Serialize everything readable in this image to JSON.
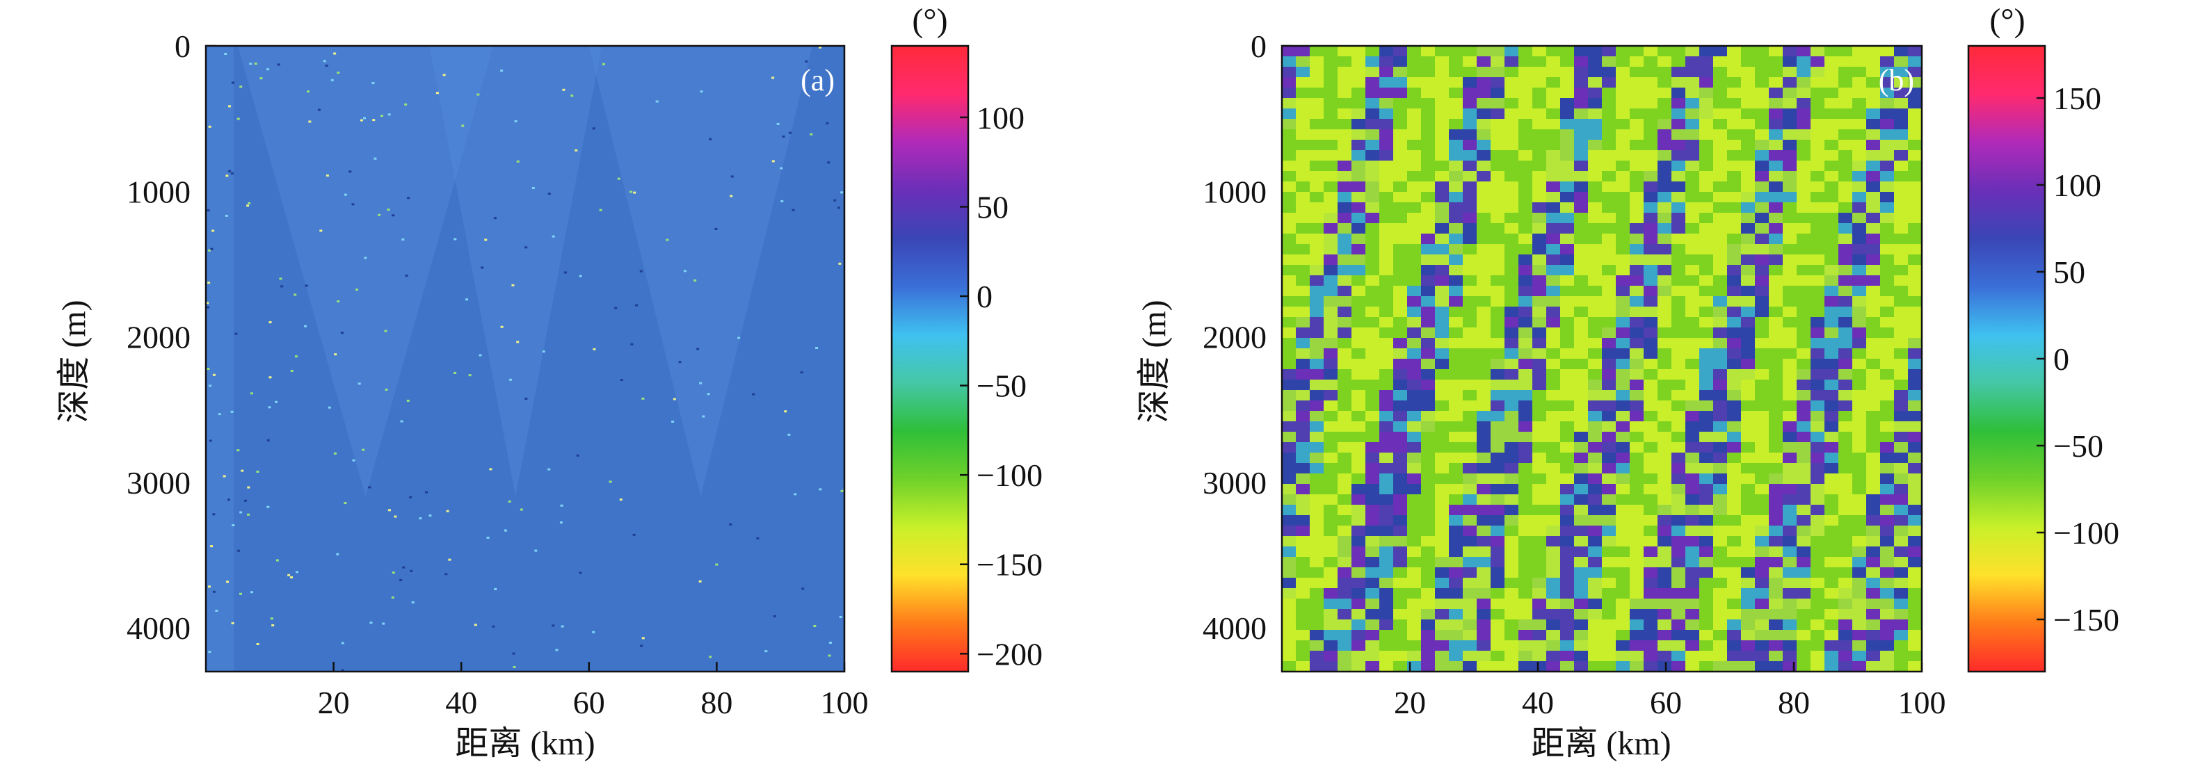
{
  "figure": {
    "background": "#ffffff"
  },
  "chart_data": [
    {
      "panel_label": "(a)",
      "type": "heatmap",
      "xlabel": "距离 (km)",
      "ylabel": "深度 (m)",
      "xlim": [
        0,
        100
      ],
      "ylim": [
        0,
        4300
      ],
      "y_inverted": true,
      "xticks": [
        20,
        40,
        60,
        80,
        100
      ],
      "yticks": [
        0,
        1000,
        2000,
        3000,
        4000
      ],
      "base_color": "#3f74c9",
      "colorbar": {
        "unit": "(°)",
        "range": [
          -210,
          140
        ],
        "ticks": [
          100,
          50,
          0,
          -50,
          -100,
          -150,
          -200
        ],
        "colormap": "rainbow-jet",
        "stops": [
          "#ff2a2a",
          "#ff7a1a",
          "#ffe12a",
          "#c8f02a",
          "#6fd12a",
          "#2fbf3a",
          "#45c7a7",
          "#3fc1f0",
          "#3a6fd8",
          "#3a46b5",
          "#6a2fb8",
          "#b02ab9",
          "#ff2a6e",
          "#ff2a3a"
        ]
      }
    },
    {
      "panel_label": "(b)",
      "type": "heatmap",
      "xlabel": "距离 (km)",
      "ylabel": "深度 (m)",
      "xlim": [
        0,
        100
      ],
      "ylim": [
        0,
        4300
      ],
      "y_inverted": true,
      "xticks": [
        20,
        40,
        60,
        80,
        100
      ],
      "yticks": [
        0,
        1000,
        2000,
        3000,
        4000
      ],
      "colorbar": {
        "unit": "(°)",
        "range": [
          -180,
          180
        ],
        "ticks": [
          150,
          100,
          50,
          0,
          -50,
          -100,
          -150
        ],
        "colormap": "rainbow-jet",
        "stops": [
          "#ff2a2a",
          "#ff7a1a",
          "#ffe12a",
          "#c8f02a",
          "#6fd12a",
          "#2fbf3a",
          "#45c7a7",
          "#3fc1f0",
          "#3a6fd8",
          "#3a46b5",
          "#6a2fb8",
          "#b02ab9",
          "#ff2a6e",
          "#ff2a3a"
        ]
      }
    }
  ]
}
